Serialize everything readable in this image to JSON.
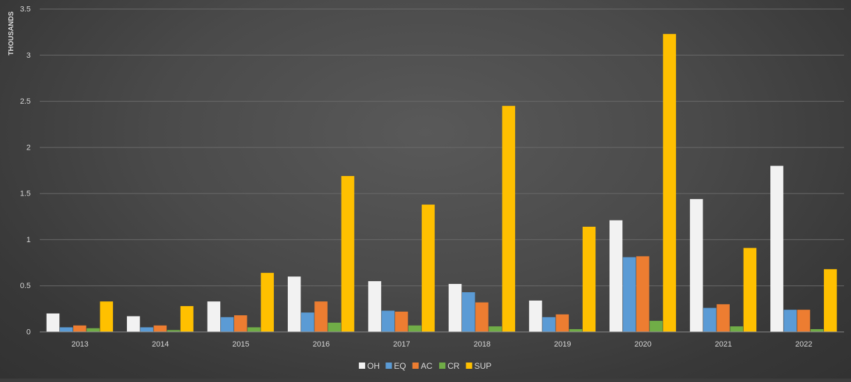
{
  "chart_data": {
    "type": "bar",
    "title": "",
    "xlabel": "",
    "ylabel": "THOUSANDS",
    "ylim": [
      0,
      3.5
    ],
    "yticks": [
      0,
      0.5,
      1,
      1.5,
      2,
      2.5,
      3,
      3.5
    ],
    "ytick_labels": [
      "0",
      "0.5",
      "1",
      "1.5",
      "2",
      "2.5",
      "3",
      "3.5"
    ],
    "grid": true,
    "legend_position": "bottom",
    "categories": [
      "2013",
      "2014",
      "2015",
      "2016",
      "2017",
      "2018",
      "2019",
      "2020",
      "2021",
      "2022"
    ],
    "series": [
      {
        "name": "OH",
        "color": "#f2f2f2",
        "values": [
          0.2,
          0.17,
          0.33,
          0.6,
          0.55,
          0.52,
          0.34,
          1.21,
          1.44,
          1.8
        ]
      },
      {
        "name": "EQ",
        "color": "#5b9bd5",
        "values": [
          0.05,
          0.05,
          0.16,
          0.21,
          0.23,
          0.43,
          0.16,
          0.81,
          0.26,
          0.24
        ]
      },
      {
        "name": "AC",
        "color": "#ed7d31",
        "values": [
          0.07,
          0.07,
          0.18,
          0.33,
          0.22,
          0.32,
          0.19,
          0.82,
          0.3,
          0.24
        ]
      },
      {
        "name": "CR",
        "color": "#70ad47",
        "values": [
          0.04,
          0.02,
          0.05,
          0.1,
          0.07,
          0.06,
          0.03,
          0.12,
          0.06,
          0.03
        ]
      },
      {
        "name": "SUP",
        "color": "#ffc000",
        "values": [
          0.33,
          0.28,
          0.64,
          1.69,
          1.38,
          2.45,
          1.14,
          3.23,
          0.91,
          0.68
        ]
      }
    ]
  }
}
